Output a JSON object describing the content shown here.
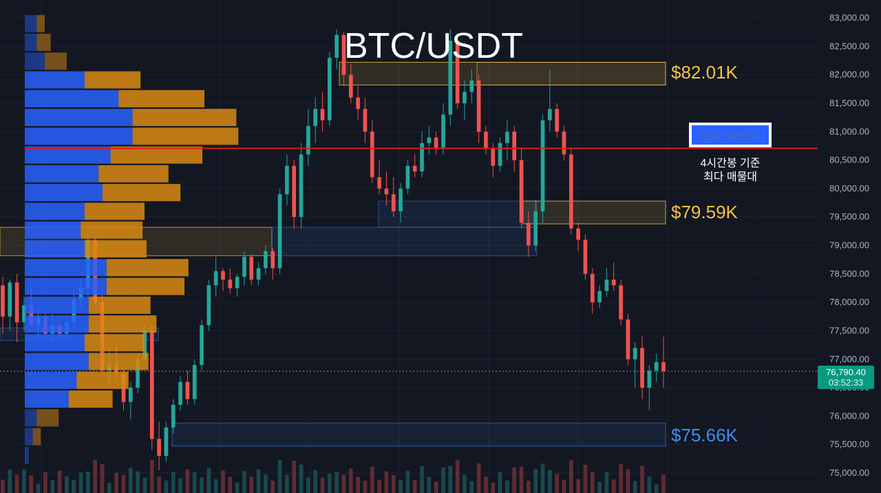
{
  "chart_data": {
    "type": "candlestick",
    "title": "BTC/USDT",
    "ylim": [
      74800,
      83150
    ],
    "y_ticks": [
      "83,000.00",
      "82,500.00",
      "82,000.00",
      "81,500.00",
      "81,000.00",
      "80,500.00",
      "80,000.00",
      "79,500.00",
      "79,000.00",
      "78,500.00",
      "78,000.00",
      "77,500.00",
      "77,000.00",
      "76,500.00",
      "76,000.00",
      "75,500.00",
      "75,000.00"
    ],
    "y_tick_values": [
      83000,
      82500,
      82000,
      81500,
      81000,
      80500,
      80000,
      79500,
      79000,
      78500,
      78000,
      77500,
      77000,
      76500,
      76000,
      75500,
      75000
    ],
    "current_price": 76790.4,
    "current_price_label": "76,790.40",
    "countdown_label": "03:52:33",
    "poc": {
      "value": 80707.04,
      "label": "POC: 80707.04"
    },
    "annotation_text": [
      "4시간봉 기준",
      "최다 매물대"
    ],
    "price_zones": [
      {
        "label": "$82.01K",
        "low": 81820,
        "high": 82220,
        "type": "resistance"
      },
      {
        "label": "$79.59K",
        "low": 79380,
        "high": 79780,
        "type": "resistance"
      },
      {
        "label": "$75.66K",
        "low": 75470,
        "high": 75880,
        "type": "support"
      }
    ],
    "extra_zones": [
      {
        "low": 78820,
        "high": 79320,
        "kind": "yellow"
      },
      {
        "low": 78820,
        "high": 79320,
        "kind": "blue"
      },
      {
        "low": 79320,
        "high": 79780,
        "kind": "blue"
      },
      {
        "low": 77330,
        "high": 77550,
        "kind": "blue"
      }
    ],
    "candles": [
      [
        78300,
        78450,
        77450,
        77750
      ],
      [
        77750,
        78400,
        77500,
        78350
      ],
      [
        78350,
        78500,
        77300,
        77650
      ],
      [
        77650,
        78100,
        77500,
        77950
      ],
      [
        77950,
        78300,
        77600,
        77600
      ],
      [
        77600,
        77900,
        77350,
        77750
      ],
      [
        77750,
        77850,
        77300,
        77450
      ],
      [
        77450,
        77800,
        77300,
        77600
      ],
      [
        77600,
        77700,
        77350,
        77450
      ],
      [
        77450,
        77750,
        77350,
        77650
      ],
      [
        77650,
        78200,
        77500,
        78050
      ],
      [
        78050,
        78400,
        77900,
        78250
      ],
      [
        78250,
        79200,
        78100,
        79100
      ],
      [
        79100,
        79150,
        77950,
        78000
      ],
      [
        78000,
        78300,
        76700,
        76800
      ],
      [
        76800,
        77200,
        76500,
        76900
      ],
      [
        76900,
        77300,
        76600,
        76750
      ],
      [
        76750,
        76900,
        76100,
        76250
      ],
      [
        76250,
        76600,
        75950,
        76500
      ],
      [
        76500,
        77100,
        76400,
        77000
      ],
      [
        77000,
        77600,
        76900,
        77500
      ],
      [
        77500,
        77600,
        75400,
        75600
      ],
      [
        75600,
        75900,
        75050,
        75300
      ],
      [
        75300,
        75900,
        75200,
        75800
      ],
      [
        75800,
        76300,
        75700,
        76200
      ],
      [
        76200,
        76700,
        76100,
        76600
      ],
      [
        76600,
        76800,
        76200,
        76300
      ],
      [
        76300,
        77000,
        76200,
        76900
      ],
      [
        76900,
        77700,
        76800,
        77600
      ],
      [
        77600,
        78400,
        77500,
        78300
      ],
      [
        78300,
        78800,
        78100,
        78550
      ],
      [
        78550,
        78600,
        78200,
        78400
      ],
      [
        78400,
        78600,
        78150,
        78250
      ],
      [
        78250,
        78500,
        78100,
        78450
      ],
      [
        78450,
        78900,
        78300,
        78800
      ],
      [
        78800,
        78850,
        78300,
        78400
      ],
      [
        78400,
        78700,
        78300,
        78600
      ],
      [
        78600,
        79000,
        78500,
        78900
      ],
      [
        78900,
        78950,
        78400,
        78600
      ],
      [
        78600,
        80000,
        78500,
        79900
      ],
      [
        79900,
        80600,
        79700,
        80400
      ],
      [
        80400,
        80500,
        79300,
        79500
      ],
      [
        79500,
        80800,
        79300,
        80600
      ],
      [
        80600,
        81400,
        80400,
        81100
      ],
      [
        81100,
        81600,
        80800,
        81400
      ],
      [
        81400,
        81700,
        81000,
        81200
      ],
      [
        81200,
        82400,
        81100,
        82300
      ],
      [
        82300,
        82800,
        82100,
        82700
      ],
      [
        82700,
        82750,
        81800,
        82000
      ],
      [
        82000,
        82200,
        81500,
        81600
      ],
      [
        81600,
        81800,
        81200,
        81400
      ],
      [
        81400,
        81600,
        80800,
        81000
      ],
      [
        81000,
        81200,
        80100,
        80200
      ],
      [
        80200,
        80500,
        79900,
        80000
      ],
      [
        80000,
        80300,
        79700,
        79900
      ],
      [
        79900,
        80200,
        79500,
        79600
      ],
      [
        79600,
        80100,
        79400,
        80000
      ],
      [
        80000,
        80500,
        79900,
        80400
      ],
      [
        80400,
        80600,
        80200,
        80300
      ],
      [
        80300,
        81000,
        80200,
        80800
      ],
      [
        80800,
        81100,
        80600,
        80900
      ],
      [
        80900,
        81000,
        80600,
        80700
      ],
      [
        80700,
        81500,
        80600,
        81300
      ],
      [
        81300,
        82800,
        81100,
        82600
      ],
      [
        82600,
        82700,
        81400,
        81500
      ],
      [
        81500,
        81900,
        81200,
        81700
      ],
      [
        81700,
        82100,
        81500,
        81900
      ],
      [
        81900,
        82000,
        80800,
        81000
      ],
      [
        81000,
        81100,
        80600,
        80700
      ],
      [
        80700,
        80800,
        80200,
        80400
      ],
      [
        80400,
        80900,
        80300,
        80800
      ],
      [
        80800,
        81200,
        80500,
        81000
      ],
      [
        81000,
        81100,
        80300,
        80500
      ],
      [
        80500,
        80700,
        79300,
        79400
      ],
      [
        79400,
        79600,
        78800,
        79000
      ],
      [
        79000,
        79800,
        78900,
        79600
      ],
      [
        79600,
        81300,
        79400,
        81200
      ],
      [
        81200,
        82100,
        81000,
        81400
      ],
      [
        81400,
        81500,
        80900,
        81000
      ],
      [
        81000,
        81100,
        80500,
        80600
      ],
      [
        80600,
        80700,
        79200,
        79300
      ],
      [
        79300,
        79400,
        78900,
        79100
      ],
      [
        79100,
        79200,
        78400,
        78500
      ],
      [
        78500,
        78600,
        77800,
        78000
      ],
      [
        78000,
        78300,
        77900,
        78200
      ],
      [
        78200,
        78600,
        78100,
        78400
      ],
      [
        78400,
        78700,
        78200,
        78300
      ],
      [
        78300,
        78400,
        77600,
        77700
      ],
      [
        77700,
        77800,
        76900,
        77000
      ],
      [
        77000,
        77300,
        76500,
        77200
      ],
      [
        77200,
        77400,
        76300,
        76500
      ],
      [
        76500,
        76900,
        76100,
        76800
      ],
      [
        76800,
        77100,
        76600,
        76950
      ],
      [
        76950,
        77400,
        76500,
        76790
      ]
    ],
    "volume_profile": [
      {
        "price": 82900,
        "buy": 0.06,
        "sell": 0.04
      },
      {
        "price": 82570,
        "buy": 0.06,
        "sell": 0.07
      },
      {
        "price": 82240,
        "buy": 0.1,
        "sell": 0.11
      },
      {
        "price": 81910,
        "buy": 0.3,
        "sell": 0.28
      },
      {
        "price": 81580,
        "buy": 0.47,
        "sell": 0.43
      },
      {
        "price": 81250,
        "buy": 0.54,
        "sell": 0.52
      },
      {
        "price": 80920,
        "buy": 0.54,
        "sell": 0.53
      },
      {
        "price": 80590,
        "buy": 0.43,
        "sell": 0.46
      },
      {
        "price": 80260,
        "buy": 0.37,
        "sell": 0.35
      },
      {
        "price": 79930,
        "buy": 0.39,
        "sell": 0.39
      },
      {
        "price": 79600,
        "buy": 0.3,
        "sell": 0.3
      },
      {
        "price": 79270,
        "buy": 0.28,
        "sell": 0.31
      },
      {
        "price": 78940,
        "buy": 0.3,
        "sell": 0.31
      },
      {
        "price": 78610,
        "buy": 0.41,
        "sell": 0.41
      },
      {
        "price": 78280,
        "buy": 0.41,
        "sell": 0.39
      },
      {
        "price": 77950,
        "buy": 0.32,
        "sell": 0.31
      },
      {
        "price": 77620,
        "buy": 0.32,
        "sell": 0.34
      },
      {
        "price": 77290,
        "buy": 0.3,
        "sell": 0.3
      },
      {
        "price": 76960,
        "buy": 0.32,
        "sell": 0.3
      },
      {
        "price": 76630,
        "buy": 0.26,
        "sell": 0.26
      },
      {
        "price": 76300,
        "buy": 0.22,
        "sell": 0.22
      },
      {
        "price": 75970,
        "buy": 0.06,
        "sell": 0.11
      },
      {
        "price": 75640,
        "buy": 0.04,
        "sell": 0.04
      },
      {
        "price": 75310,
        "buy": 0.02,
        "sell": 0.0
      }
    ],
    "colors": {
      "background": "#131722",
      "up": "#26a69a",
      "down": "#ef5350",
      "grid": "#1e2230",
      "poc_line": "#e21a1a",
      "resistance_label": "#f5c342",
      "support_label": "#3d8eef",
      "vp_buy": "#2962ff",
      "vp_sell": "#d98a12",
      "price_tag": "#089981"
    }
  }
}
